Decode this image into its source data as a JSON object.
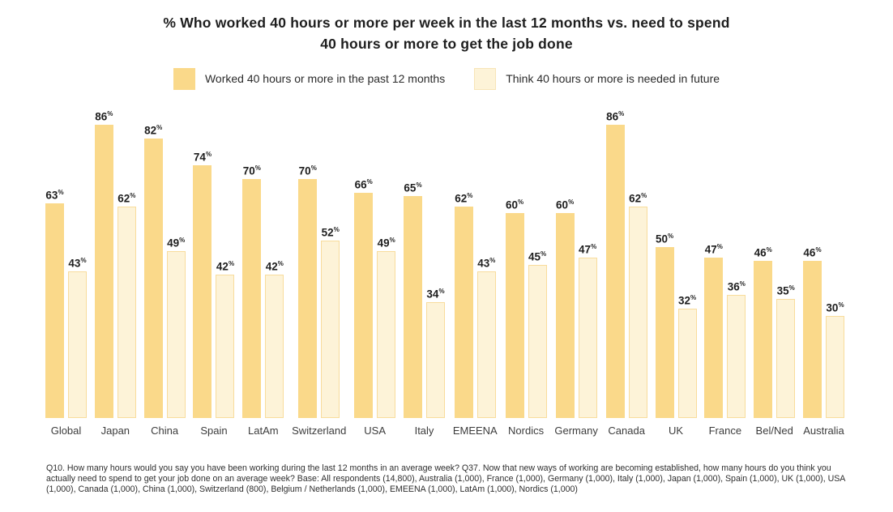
{
  "title": {
    "line1": "% Who worked 40 hours or more per week in the last 12 months vs. need to spend",
    "line2": "40 hours or more to get the job done"
  },
  "legend": {
    "items": [
      {
        "label": "Worked 40 hours or more in the past 12 months",
        "color": "#fad98a",
        "style": "solid"
      },
      {
        "label": "Think 40 hours or more is needed in future",
        "color": "#fdf3d8",
        "border": "#f8dc9c",
        "style": "outlined"
      }
    ],
    "position": "top"
  },
  "chart_data": {
    "type": "bar",
    "categories": [
      "Global",
      "Japan",
      "China",
      "Spain",
      "LatAm",
      "Switzerland",
      "USA",
      "Italy",
      "EMEENA",
      "Nordics",
      "Germany",
      "Canada",
      "UK",
      "France",
      "Bel/Ned",
      "Australia"
    ],
    "series": [
      {
        "name": "Worked 40 hours or more in the past 12 months",
        "values": [
          63,
          86,
          82,
          74,
          70,
          70,
          66,
          65,
          62,
          60,
          60,
          86,
          50,
          47,
          46,
          46
        ]
      },
      {
        "name": "Think 40 hours or more is needed in future",
        "values": [
          43,
          62,
          49,
          42,
          42,
          52,
          49,
          34,
          43,
          45,
          47,
          62,
          32,
          36,
          35,
          30
        ]
      }
    ],
    "unit": "%",
    "title": "% Who worked 40 hours or more per week in the last 12 months vs. need to spend 40 hours or more to get the job done",
    "xlabel": "",
    "ylabel": "",
    "ylim": [
      0,
      100
    ],
    "grid": false,
    "value_labels": true,
    "legend_position": "top",
    "bar_colors": {
      "series1": "#fad98a",
      "series2_fill": "#fdf3d8",
      "series2_border": "#f8dc9c"
    }
  },
  "footnote": "Q10. How many hours would you say you have been working during the last 12 months in an average week? Q37. Now that new ways of working are becoming established, how many hours do you think you actually need to spend to get your job done on an average week? Base: All respondents (14,800), Australia (1,000), France (1,000), Germany (1,000), Italy (1,000), Japan (1,000), Spain (1,000), UK (1,000), USA (1,000), Canada (1,000), China (1,000), Switzerland (800), Belgium / Netherlands (1,000), EMEENA (1,000), LatAm (1,000), Nordics (1,000)"
}
